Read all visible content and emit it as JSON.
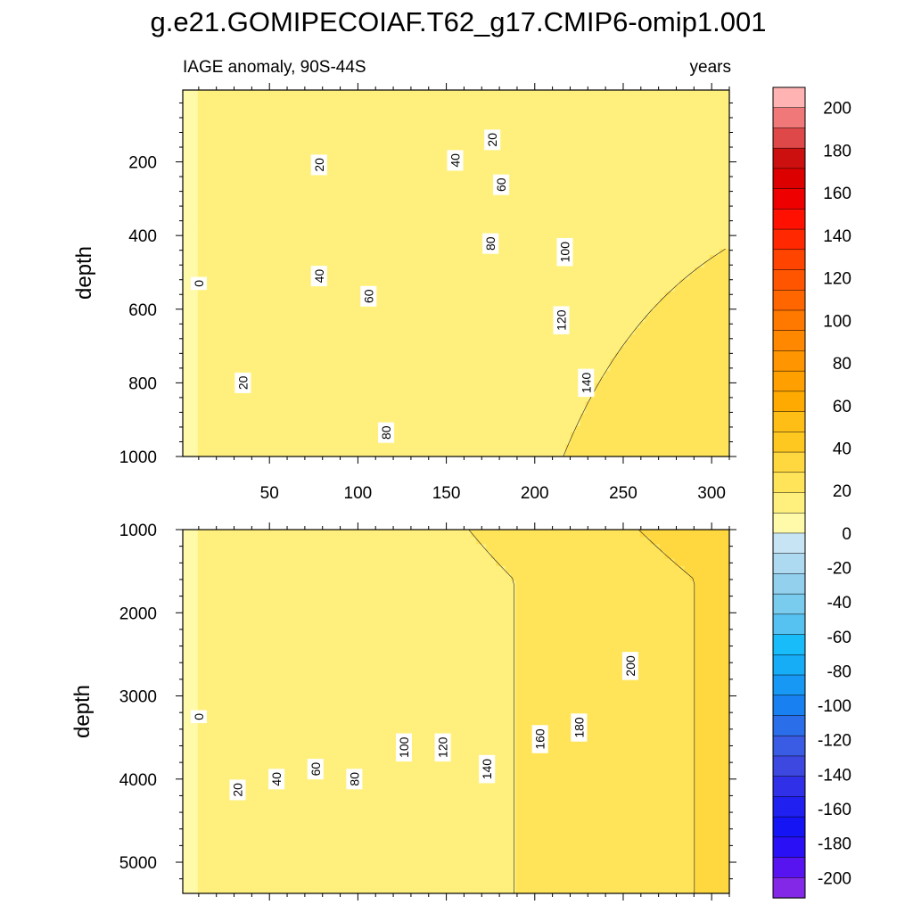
{
  "title": "g.e21.GOMIPECOIAF.T62_g17.CMIP6-omip1.001",
  "chart_data": [
    {
      "type": "heatmap",
      "panel": "upper",
      "title_left": "IAGE anomaly, 90S-44S",
      "title_right": "years",
      "xlabel": "",
      "ylabel": "depth",
      "xlim": [
        1,
        310
      ],
      "ylim": [
        1000,
        5
      ],
      "x_ticks": [
        50,
        100,
        150,
        200,
        250,
        300
      ],
      "y_ticks": [
        200,
        400,
        600,
        800,
        1000
      ],
      "contour_interval": 10,
      "contour_labels": [
        {
          "value": "0",
          "x": 10,
          "y": 530
        },
        {
          "value": "20",
          "x": 35,
          "y": 800
        },
        {
          "value": "20",
          "x": 78,
          "y": 208
        },
        {
          "value": "20",
          "x": 176,
          "y": 140
        },
        {
          "value": "40",
          "x": 78,
          "y": 510
        },
        {
          "value": "40",
          "x": 155,
          "y": 196
        },
        {
          "value": "60",
          "x": 106,
          "y": 565
        },
        {
          "value": "60",
          "x": 181,
          "y": 262
        },
        {
          "value": "80",
          "x": 116,
          "y": 935
        },
        {
          "value": "80",
          "x": 175,
          "y": 422
        },
        {
          "value": "100",
          "x": 217,
          "y": 445
        },
        {
          "value": "120",
          "x": 215,
          "y": 630
        },
        {
          "value": "140",
          "x": 229,
          "y": 800
        }
      ]
    },
    {
      "type": "heatmap",
      "panel": "lower",
      "xlabel": "",
      "ylabel": "depth",
      "xlim": [
        1,
        310
      ],
      "ylim": [
        5375,
        1000
      ],
      "y_ticks": [
        1000,
        2000,
        3000,
        4000,
        5000
      ],
      "contour_interval": 10,
      "contour_labels": [
        {
          "value": "0",
          "x": 10,
          "y": 3250
        },
        {
          "value": "20",
          "x": 32,
          "y": 4130
        },
        {
          "value": "40",
          "x": 54,
          "y": 4000
        },
        {
          "value": "60",
          "x": 76,
          "y": 3880
        },
        {
          "value": "80",
          "x": 98,
          "y": 4000
        },
        {
          "value": "100",
          "x": 126,
          "y": 3620
        },
        {
          "value": "120",
          "x": 148,
          "y": 3620
        },
        {
          "value": "140",
          "x": 173,
          "y": 3880
        },
        {
          "value": "160",
          "x": 203,
          "y": 3520
        },
        {
          "value": "180",
          "x": 225,
          "y": 3380
        },
        {
          "value": "200",
          "x": 254,
          "y": 2640
        }
      ]
    }
  ],
  "colorbar": {
    "labels": [
      "200",
      "180",
      "160",
      "140",
      "120",
      "100",
      "80",
      "60",
      "40",
      "20",
      "0",
      "-20",
      "-40",
      "-60",
      "-80",
      "-100",
      "-120",
      "-140",
      "-160",
      "-180",
      "-200"
    ],
    "colors": [
      "#FFB3B3",
      "#F07878",
      "#DE4848",
      "#CC1010",
      "#DD0000",
      "#EE0000",
      "#FF1000",
      "#FF2800",
      "#FF4400",
      "#FF5500",
      "#FF6600",
      "#FF7800",
      "#FF8800",
      "#FF9500",
      "#FFA000",
      "#FFAA00",
      "#FFBE16",
      "#FFC820",
      "#FFD840",
      "#FFE45A",
      "#FFF07E",
      "#FFFAAA",
      "#C6E4F4",
      "#ADDAF0",
      "#92D0EE",
      "#7ACCEE",
      "#55C2F2",
      "#18BCF8",
      "#16ACF6",
      "#1698F4",
      "#1880F0",
      "#2A6EEA",
      "#3A5CE4",
      "#3C48E0",
      "#3030E8",
      "#2020F0",
      "#1414F4",
      "#2A10F4",
      "#5814F0",
      "#8428E8"
    ]
  }
}
